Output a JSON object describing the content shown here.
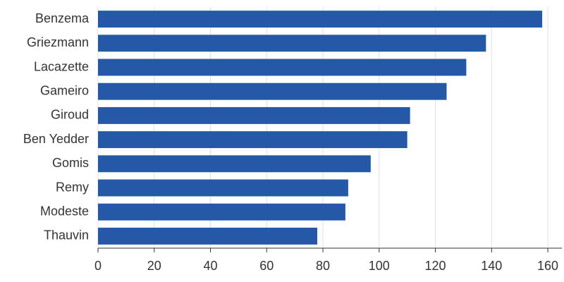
{
  "chart_data": {
    "type": "barh",
    "categories": [
      "Benzema",
      "Griezmann",
      "Lacazette",
      "Gameiro",
      "Giroud",
      "Ben Yedder",
      "Gomis",
      "Remy",
      "Modeste",
      "Thauvin"
    ],
    "values": [
      158,
      138,
      131,
      124,
      111,
      110,
      97,
      89,
      88,
      78
    ],
    "color": "#2559a7",
    "xlim": [
      0,
      165
    ],
    "xticks": [
      0,
      20,
      40,
      60,
      80,
      100,
      120,
      140,
      160
    ],
    "grid": true
  }
}
